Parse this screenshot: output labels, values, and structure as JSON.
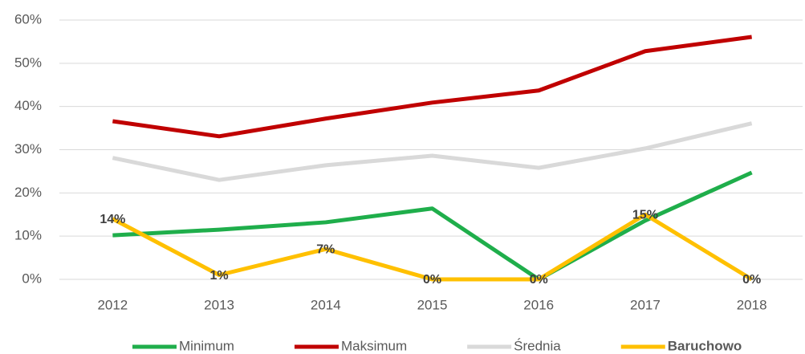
{
  "chart_data": {
    "type": "line",
    "categories": [
      "2012",
      "2013",
      "2014",
      "2015",
      "2016",
      "2017",
      "2018"
    ],
    "series": [
      {
        "name": "Minimum",
        "color": "#1fae4b",
        "values": [
          10.2,
          11.5,
          13.2,
          16.4,
          0,
          13.6,
          24.7
        ]
      },
      {
        "name": "Maksimum",
        "color": "#c00000",
        "values": [
          36.6,
          33.1,
          37.2,
          40.9,
          43.7,
          52.8,
          56.1
        ]
      },
      {
        "name": "Średnia",
        "color": "#d9d9d9",
        "values": [
          28.1,
          23.0,
          26.4,
          28.6,
          25.8,
          30.3,
          36.1
        ]
      },
      {
        "name": "Baruchowo",
        "color": "#ffc000",
        "highlight": true,
        "values": [
          14,
          1,
          7,
          0,
          0,
          15,
          0
        ],
        "value_labels": [
          "14%",
          "1%",
          "7%",
          "0%",
          "0%",
          "15%",
          "0%"
        ]
      }
    ],
    "ylim": [
      0,
      60
    ],
    "yticks": [
      {
        "value": 0,
        "label": "0%"
      },
      {
        "value": 10,
        "label": "10%"
      },
      {
        "value": 20,
        "label": "20%"
      },
      {
        "value": 30,
        "label": "30%"
      },
      {
        "value": 40,
        "label": "40%"
      },
      {
        "value": 50,
        "label": "50%"
      },
      {
        "value": 60,
        "label": "60%"
      }
    ],
    "grid": true,
    "legend": "bottom"
  }
}
